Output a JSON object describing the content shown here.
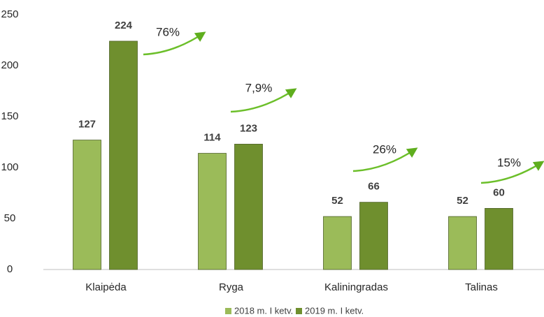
{
  "chart_data": {
    "type": "bar",
    "categories": [
      "Klaipėda",
      "Ryga",
      "Kaliningradas",
      "Talinas"
    ],
    "series": [
      {
        "name": "2018 m. I ketv.",
        "color": "#9bbb59",
        "values": [
          127,
          114,
          52,
          52
        ]
      },
      {
        "name": "2019 m. I ketv.",
        "color": "#6f8f2e",
        "values": [
          224,
          123,
          66,
          60
        ]
      }
    ],
    "annotations": [
      "76%",
      "7,9%",
      "26%",
      "15%"
    ],
    "ylim": [
      0,
      250
    ],
    "yticks": [
      0,
      50,
      100,
      150,
      200,
      250
    ],
    "grid": false
  }
}
